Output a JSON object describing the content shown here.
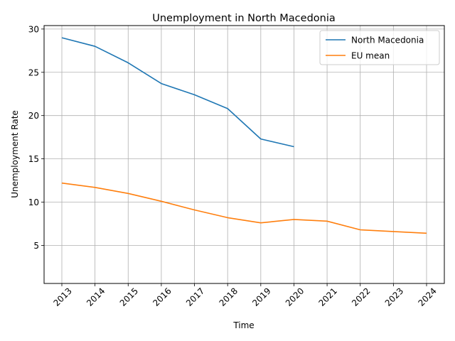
{
  "chart_data": {
    "type": "line",
    "title": "Unemployment in North Macedonia",
    "xlabel": "Time",
    "ylabel": "Unemployment Rate",
    "x": [
      "2013",
      "2014",
      "2015",
      "2016",
      "2017",
      "2018",
      "2019",
      "2020",
      "2021",
      "2022",
      "2023",
      "2024"
    ],
    "yticks": [
      5,
      10,
      15,
      20,
      25,
      30
    ],
    "ylim": [
      0.6,
      30.4
    ],
    "grid": true,
    "legend_position": "top-right",
    "series": [
      {
        "name": "North Macedonia",
        "color": "#1f77b4",
        "values": [
          29.0,
          28.0,
          26.1,
          23.7,
          22.4,
          20.8,
          17.3,
          16.4,
          null,
          null,
          null,
          null
        ]
      },
      {
        "name": "EU mean",
        "color": "#ff7f0e",
        "values": [
          12.2,
          11.7,
          11.0,
          10.1,
          9.1,
          8.2,
          7.6,
          8.0,
          7.8,
          6.8,
          6.6,
          6.4
        ]
      }
    ]
  }
}
